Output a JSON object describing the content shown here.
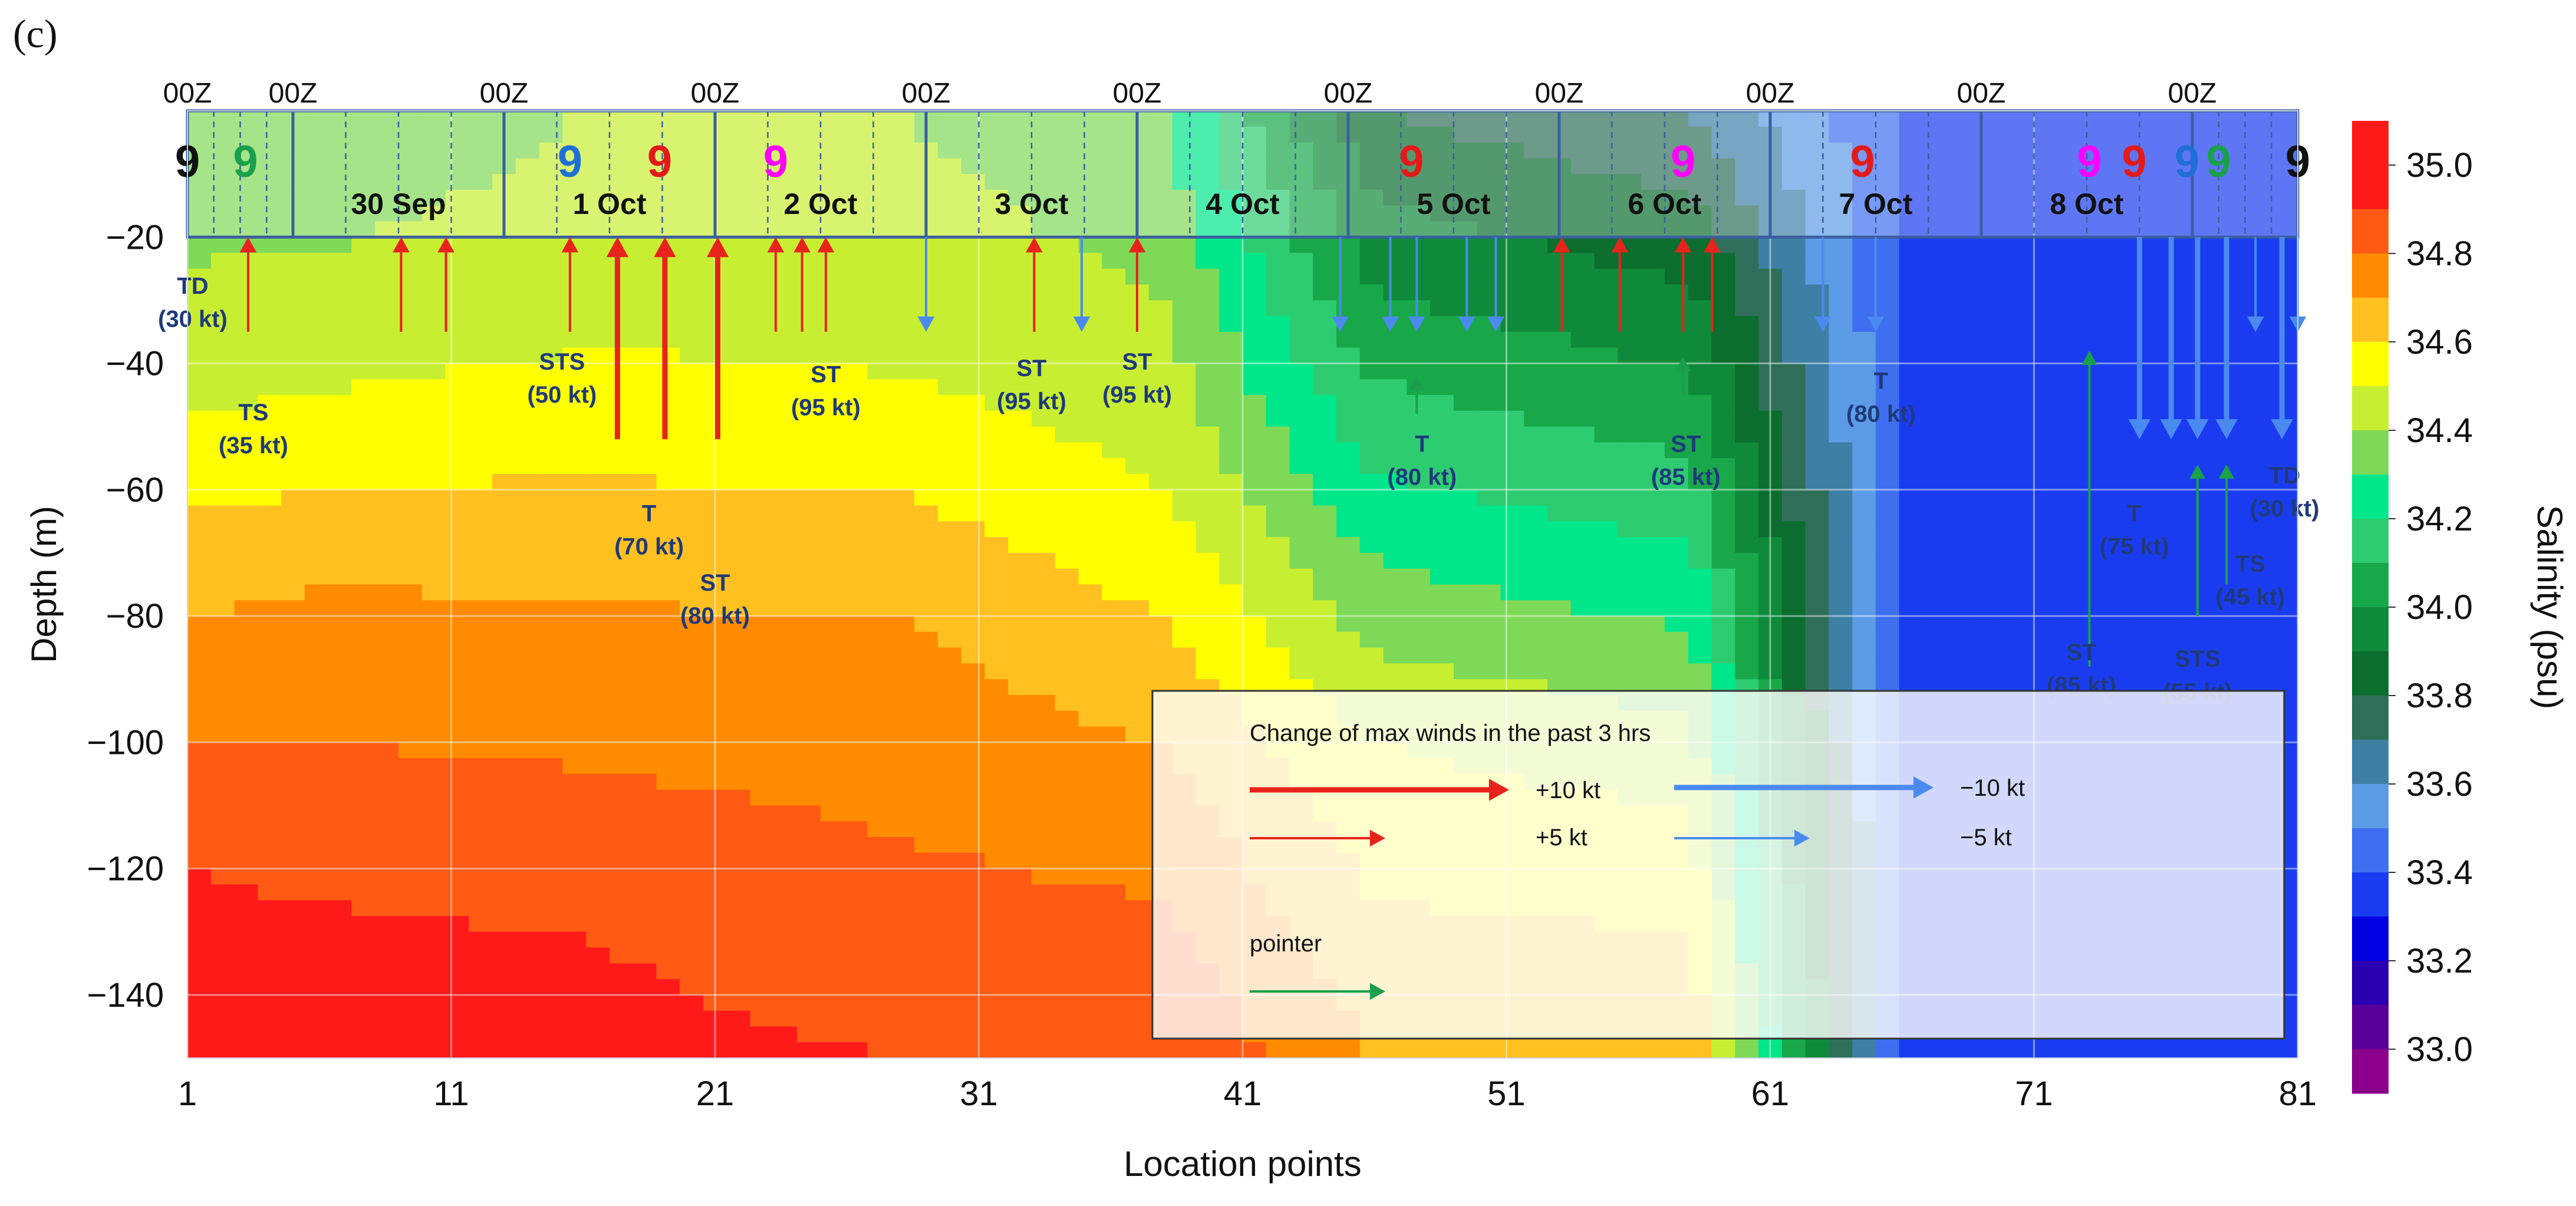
{
  "panel_label": "(c)",
  "chart_data": {
    "type": "contour",
    "xlabel": "Location points",
    "ylabel": "Depth (m)",
    "xlim": [
      1,
      81
    ],
    "ylim": [
      -150,
      0
    ],
    "x_ticks": [
      1,
      11,
      21,
      31,
      41,
      51,
      61,
      71,
      81
    ],
    "y_ticks": [
      -20,
      -40,
      -60,
      -80,
      -100,
      -120,
      -140
    ],
    "grid": true,
    "colorbar": {
      "label": "Salinity (psu)",
      "min": 32.9,
      "max": 35.1,
      "tick_values": [
        35.0,
        34.8,
        34.6,
        34.4,
        34.2,
        34.0,
        33.8,
        33.6,
        33.4,
        33.2,
        33.0
      ],
      "tick_labels": [
        "35.0",
        "34.8",
        "34.6",
        "34.4",
        "34.2",
        "34.0",
        "33.8",
        "33.6",
        "33.4",
        "33.2",
        "33.0"
      ],
      "levels": [
        {
          "lo": 34.9,
          "hi": 35.1,
          "color": "#ff1a1a"
        },
        {
          "lo": 34.8,
          "hi": 34.9,
          "color": "#ff5a14"
        },
        {
          "lo": 34.7,
          "hi": 34.8,
          "color": "#ff8c00"
        },
        {
          "lo": 34.6,
          "hi": 34.7,
          "color": "#ffc020"
        },
        {
          "lo": 34.5,
          "hi": 34.6,
          "color": "#ffff00"
        },
        {
          "lo": 34.4,
          "hi": 34.5,
          "color": "#c8ee32"
        },
        {
          "lo": 34.3,
          "hi": 34.4,
          "color": "#7ed957"
        },
        {
          "lo": 34.2,
          "hi": 34.3,
          "color": "#00e68a"
        },
        {
          "lo": 34.1,
          "hi": 34.2,
          "color": "#2ecc71"
        },
        {
          "lo": 34.0,
          "hi": 34.1,
          "color": "#18a84a"
        },
        {
          "lo": 33.9,
          "hi": 34.0,
          "color": "#0f8a3a"
        },
        {
          "lo": 33.8,
          "hi": 33.9,
          "color": "#0b6e2e"
        },
        {
          "lo": 33.7,
          "hi": 33.8,
          "color": "#2f6f5a"
        },
        {
          "lo": 33.6,
          "hi": 33.7,
          "color": "#3e7fa6"
        },
        {
          "lo": 33.5,
          "hi": 33.6,
          "color": "#5c9be6"
        },
        {
          "lo": 33.4,
          "hi": 33.5,
          "color": "#3e6ff0"
        },
        {
          "lo": 33.3,
          "hi": 33.4,
          "color": "#1a3cf0"
        },
        {
          "lo": 33.2,
          "hi": 33.3,
          "color": "#0000e0"
        },
        {
          "lo": 33.1,
          "hi": 33.2,
          "color": "#2a00b0"
        },
        {
          "lo": 33.0,
          "hi": 33.1,
          "color": "#5a0098"
        },
        {
          "lo": 32.9,
          "hi": 33.0,
          "color": "#8a008a"
        }
      ]
    },
    "salinity_profiles": [
      {
        "x_range": [
          1,
          6
        ],
        "top": 34.3,
        "d34_5": -48,
        "d34_7": -80,
        "d34_9": -120
      },
      {
        "x_range": [
          6,
          16
        ],
        "top": 34.3,
        "d34_5": -45,
        "d34_7": -75,
        "d34_9": -125
      },
      {
        "x_range": [
          16,
          28
        ],
        "top": 34.4,
        "d34_5": -38,
        "d34_7": -78,
        "d34_9": -130
      },
      {
        "x_range": [
          28,
          38
        ],
        "top": 34.4,
        "d34_5": -42,
        "d34_7": -80,
        "d34_9": -150
      },
      {
        "x_range": [
          38,
          46
        ],
        "top": 34.3,
        "d34_5": -60,
        "d34_7": -100,
        "d34_9": -150
      },
      {
        "x_range": [
          46,
          58
        ],
        "top": 33.8,
        "d34_5": -100,
        "d34_7": -150,
        "d34_9": null
      },
      {
        "x_range": [
          58,
          66
        ],
        "top": 33.7,
        "d34_5": -110,
        "d34_7": -150,
        "d34_9": null
      },
      {
        "x_range": [
          66,
          72
        ],
        "top": 33.4,
        "d34_5": null,
        "d34_7": null,
        "d34_9": null
      },
      {
        "x_range": [
          72,
          81
        ],
        "top": 33.3,
        "d34_5": null,
        "d34_7": null,
        "d34_9": null
      }
    ],
    "timeline": {
      "label_00z": "00Z",
      "boundaries_x": [
        1,
        5,
        13,
        21,
        29,
        37,
        45,
        53,
        61,
        69,
        77
      ],
      "day_labels": [
        {
          "text": "30 Sep",
          "x": 9
        },
        {
          "text": "1 Oct",
          "x": 17
        },
        {
          "text": "2 Oct",
          "x": 25
        },
        {
          "text": "3 Oct",
          "x": 33
        },
        {
          "text": "4 Oct",
          "x": 41
        },
        {
          "text": "5 Oct",
          "x": 49
        },
        {
          "text": "6 Oct",
          "x": 57
        },
        {
          "text": "7 Oct",
          "x": 65
        },
        {
          "text": "8 Oct",
          "x": 73
        }
      ],
      "cyclone_symbols": [
        {
          "x": 1.0,
          "color": "#111111"
        },
        {
          "x": 3.2,
          "color": "#1aa04a"
        },
        {
          "x": 15.5,
          "color": "#1f6fd6"
        },
        {
          "x": 18.9,
          "color": "#e41a1a"
        },
        {
          "x": 23.3,
          "color": "#ff00ff"
        },
        {
          "x": 47.4,
          "color": "#e41a1a"
        },
        {
          "x": 57.7,
          "color": "#ff00ff"
        },
        {
          "x": 64.5,
          "color": "#e41a1a"
        },
        {
          "x": 73.1,
          "color": "#ff00ff"
        },
        {
          "x": 74.8,
          "color": "#e41a1a"
        },
        {
          "x": 76.8,
          "color": "#1f6fd6"
        },
        {
          "x": 78.0,
          "color": "#1aa04a"
        },
        {
          "x": 81.0,
          "color": "#111111"
        }
      ]
    },
    "wind_change_arrows": [
      {
        "x": 3.3,
        "change": 5,
        "length": 15
      },
      {
        "x": 9.1,
        "change": 5,
        "length": 15
      },
      {
        "x": 10.8,
        "change": 5,
        "length": 15
      },
      {
        "x": 15.5,
        "change": 5,
        "length": 15
      },
      {
        "x": 17.3,
        "change": 10,
        "length": 32
      },
      {
        "x": 19.1,
        "change": 10,
        "length": 32
      },
      {
        "x": 21.1,
        "change": 10,
        "length": 32
      },
      {
        "x": 23.3,
        "change": 5,
        "length": 15
      },
      {
        "x": 24.3,
        "change": 5,
        "length": 15
      },
      {
        "x": 25.2,
        "change": 5,
        "length": 15
      },
      {
        "x": 33.1,
        "change": 5,
        "length": 15
      },
      {
        "x": 37.0,
        "change": 5,
        "length": 15
      },
      {
        "x": 29.0,
        "change": -5,
        "length": 15
      },
      {
        "x": 34.9,
        "change": -5,
        "length": 15
      },
      {
        "x": 44.7,
        "change": -5,
        "length": 15
      },
      {
        "x": 46.6,
        "change": -5,
        "length": 15
      },
      {
        "x": 47.6,
        "change": -5,
        "length": 15
      },
      {
        "x": 49.5,
        "change": -5,
        "length": 15
      },
      {
        "x": 50.6,
        "change": -5,
        "length": 15
      },
      {
        "x": 53.1,
        "change": 5,
        "length": 15
      },
      {
        "x": 55.3,
        "change": 5,
        "length": 15
      },
      {
        "x": 57.7,
        "change": 5,
        "length": 15
      },
      {
        "x": 58.8,
        "change": 5,
        "length": 15
      },
      {
        "x": 63.0,
        "change": -5,
        "length": 15
      },
      {
        "x": 65.0,
        "change": -5,
        "length": 15
      },
      {
        "x": 75.0,
        "change": -10,
        "length": 32
      },
      {
        "x": 76.2,
        "change": -10,
        "length": 32
      },
      {
        "x": 77.2,
        "change": -10,
        "length": 32
      },
      {
        "x": 78.3,
        "change": -10,
        "length": 32
      },
      {
        "x": 79.4,
        "change": -5,
        "length": 15
      },
      {
        "x": 80.4,
        "change": -10,
        "length": 32
      },
      {
        "x": 81.0,
        "change": -5,
        "length": 15
      }
    ],
    "pointer_arrows": [
      {
        "x": 47.6,
        "from_depth": -48,
        "to_depth": -42
      },
      {
        "x": 57.7,
        "from_depth": -45,
        "to_depth": -39
      },
      {
        "x": 73.1,
        "from_depth": -88,
        "to_depth": -38
      },
      {
        "x": 77.2,
        "from_depth": -80,
        "to_depth": -56
      },
      {
        "x": 78.3,
        "from_depth": -75,
        "to_depth": -56
      }
    ],
    "intensity_annotations": [
      {
        "lines": [
          "TD",
          "(30 kt)"
        ],
        "x": 1.2,
        "depth": -29,
        "color": "#1f3a7a"
      },
      {
        "lines": [
          "TS",
          "(35 kt)"
        ],
        "x": 3.5,
        "depth": -49,
        "color": "#1f3a7a"
      },
      {
        "lines": [
          "STS",
          "(50 kt)"
        ],
        "x": 15.2,
        "depth": -41,
        "color": "#1f3a7a"
      },
      {
        "lines": [
          "T",
          "(70 kt)"
        ],
        "x": 18.5,
        "depth": -65,
        "color": "#1f3a7a"
      },
      {
        "lines": [
          "ST",
          "(80 kt)"
        ],
        "x": 21.0,
        "depth": -76,
        "color": "#1f3a7a"
      },
      {
        "lines": [
          "ST",
          "(95 kt)"
        ],
        "x": 25.2,
        "depth": -43,
        "color": "#1f3a7a"
      },
      {
        "lines": [
          "ST",
          "(95 kt)"
        ],
        "x": 33.0,
        "depth": -42,
        "color": "#1f3a7a"
      },
      {
        "lines": [
          "ST",
          "(95 kt)"
        ],
        "x": 37.0,
        "depth": -41,
        "color": "#1f3a7a"
      },
      {
        "lines": [
          "T",
          "(80 kt)"
        ],
        "x": 47.8,
        "depth": -54,
        "color": "#1f3a7a"
      },
      {
        "lines": [
          "ST",
          "(85 kt)"
        ],
        "x": 57.8,
        "depth": -54,
        "color": "#1f3a7a"
      },
      {
        "lines": [
          "T",
          "(80 kt)"
        ],
        "x": 65.2,
        "depth": -44,
        "color": "#1f3a7a"
      },
      {
        "lines": [
          "ST",
          "(85 kt)"
        ],
        "x": 72.8,
        "depth": -87,
        "color": "#1f3a7a"
      },
      {
        "lines": [
          "T",
          "(75 kt)"
        ],
        "x": 74.8,
        "depth": -65,
        "color": "#1f3a7a"
      },
      {
        "lines": [
          "TS",
          "(45 kt)"
        ],
        "x": 79.2,
        "depth": -73,
        "color": "#1f3a7a"
      },
      {
        "lines": [
          "STS",
          "(55 kt)"
        ],
        "x": 77.2,
        "depth": -88,
        "color": "#1f3a7a"
      },
      {
        "lines": [
          "TD",
          "(30 kt)"
        ],
        "x": 80.5,
        "depth": -59,
        "color": "#1f3a7a"
      }
    ],
    "legend": {
      "title": "Change of max winds in the past 3 hrs",
      "items": [
        {
          "label": "+10 kt",
          "change": 10
        },
        {
          "label": "+5 kt",
          "change": 5
        },
        {
          "label": "−10 kt",
          "change": -10
        },
        {
          "label": "−5 kt",
          "change": -5
        }
      ],
      "pointer_label": "pointer",
      "placement": "lower-right"
    },
    "colors": {
      "increase": "#e8231c",
      "decrease": "#4a8af0",
      "pointer": "#1aa04a",
      "timeline_border": "#3a5fa0"
    }
  }
}
